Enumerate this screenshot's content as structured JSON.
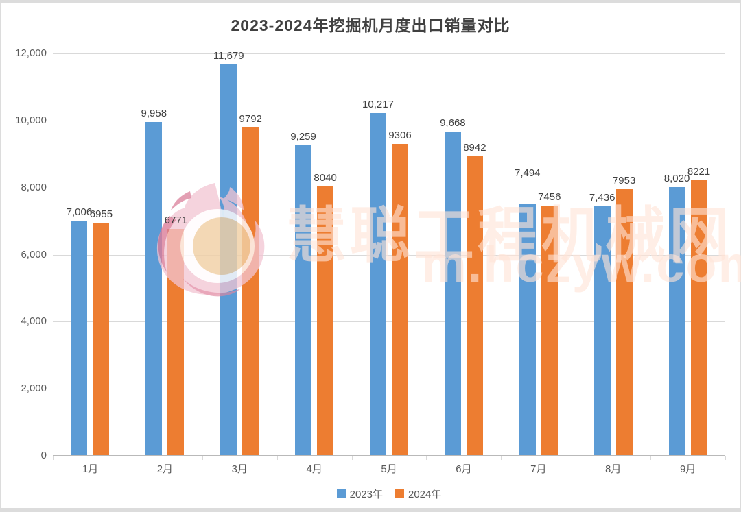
{
  "chart_data": {
    "type": "bar",
    "title": "2023-2024年挖掘机月度出口销量对比",
    "categories": [
      "1月",
      "2月",
      "3月",
      "4月",
      "5月",
      "6月",
      "7月",
      "8月",
      "9月"
    ],
    "series": [
      {
        "name": "2023年",
        "color": "#5b9bd5",
        "values": [
          7006,
          9958,
          11679,
          9259,
          10217,
          9668,
          7494,
          7436,
          8020
        ],
        "labels": [
          "7,006",
          "9,958",
          "11,679",
          "9,259",
          "10,217",
          "9,668",
          "7,494",
          "7,436",
          "8,020"
        ]
      },
      {
        "name": "2024年",
        "color": "#ed7d31",
        "values": [
          6955,
          6771,
          9792,
          8040,
          9306,
          8942,
          7456,
          7953,
          8221
        ],
        "labels": [
          "6955",
          "6771",
          "9792",
          "8040",
          "9306",
          "8942",
          "7456",
          "7953",
          "8221"
        ]
      }
    ],
    "ylim": [
      0,
      12000
    ],
    "ytick_interval": 2000,
    "yticks": [
      "0",
      "2,000",
      "4,000",
      "6,000",
      "8,000",
      "10,000",
      "12,000"
    ],
    "grid": true,
    "legend_position": "bottom-center",
    "label_adjustments": [
      {
        "series": 0,
        "index": 6,
        "raise": 33,
        "leader_line": true
      }
    ],
    "colors": {
      "gridline": "#d9d9d9",
      "axis_line": "#b9b9b9",
      "tick_label": "#595959",
      "data_label": "#404040",
      "title": "#404040"
    }
  },
  "watermark": {
    "line1": "慧聪工程机械网",
    "line2": "m.hczyw.com",
    "logo": "flame-logo"
  }
}
